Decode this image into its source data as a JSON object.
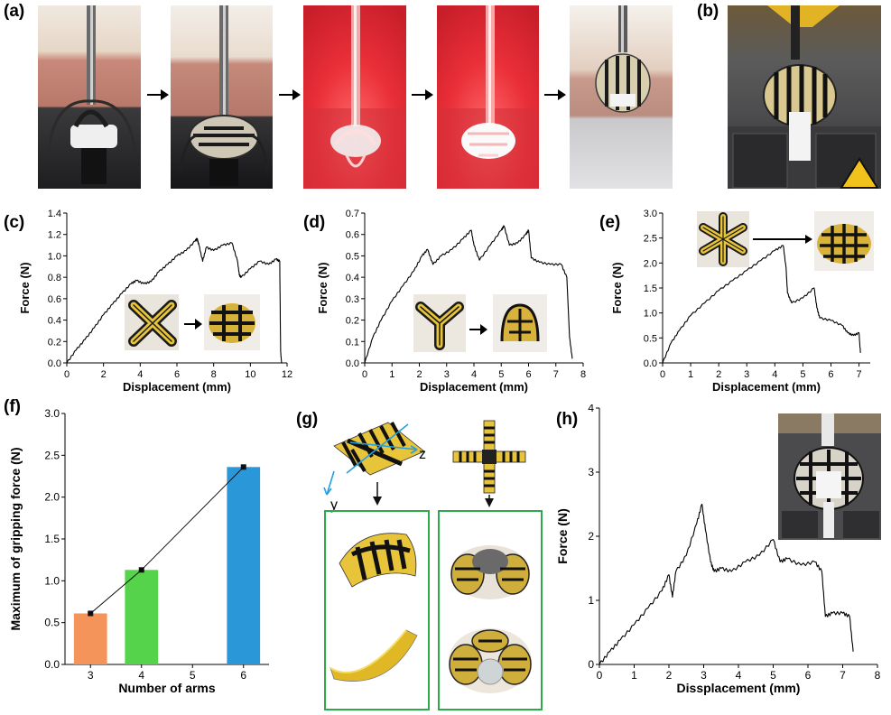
{
  "panels": {
    "a": "(a)",
    "b": "(b)",
    "c": "(c)",
    "d": "(d)",
    "e": "(e)",
    "f": "(f)",
    "g": "(g)",
    "h": "(h)"
  },
  "g_axes": {
    "z": "z",
    "y": "y"
  },
  "colors": {
    "gripper_yellow": "#e8c43a",
    "stripe_black": "#111111",
    "heat_red": "#e8343a",
    "bar_3": "#f4945a",
    "bar_4": "#55d34a",
    "bar_6": "#2a97d8",
    "frame_green": "#2eaa4a"
  },
  "chart_data": [
    {
      "id": "c",
      "type": "line",
      "xlabel": "Displacement (mm)",
      "ylabel": "Force (N)",
      "xlim": [
        0,
        12
      ],
      "ylim": [
        0,
        1.4
      ],
      "xticks": [
        "0",
        "2",
        "4",
        "6",
        "8",
        "10",
        "12"
      ],
      "yticks": [
        "0.0",
        "0.2",
        "0.4",
        "0.6",
        "0.8",
        "1.0",
        "1.2",
        "1.4"
      ],
      "x": [
        0,
        0.5,
        1,
        1.5,
        2,
        2.5,
        3,
        3.5,
        3.8,
        4.2,
        4.6,
        5.0,
        5.5,
        6.0,
        6.5,
        7.0,
        7.1,
        7.2,
        7.4,
        7.6,
        8.0,
        8.5,
        9.0,
        9.3,
        9.4,
        9.5,
        10.0,
        10.5,
        11.0,
        11.4,
        11.6,
        11.65,
        11.7
      ],
      "y": [
        0,
        0.12,
        0.22,
        0.33,
        0.45,
        0.55,
        0.65,
        0.74,
        0.77,
        0.74,
        0.76,
        0.85,
        0.92,
        1.0,
        1.05,
        1.14,
        1.16,
        1.1,
        0.95,
        1.08,
        1.05,
        1.1,
        1.12,
        0.95,
        0.82,
        0.8,
        0.88,
        0.95,
        0.92,
        0.97,
        0.95,
        0.1,
        0.0
      ]
    },
    {
      "id": "d",
      "type": "line",
      "xlabel": "Displacement (mm)",
      "ylabel": "Force (N)",
      "xlim": [
        0,
        8
      ],
      "ylim": [
        0,
        0.7
      ],
      "xticks": [
        "0",
        "1",
        "2",
        "3",
        "4",
        "5",
        "6",
        "7",
        "8"
      ],
      "yticks": [
        "0.0",
        "0.1",
        "0.2",
        "0.3",
        "0.4",
        "0.5",
        "0.6",
        "0.7"
      ],
      "x": [
        0,
        0.3,
        0.6,
        1,
        1.4,
        1.8,
        2.1,
        2.3,
        2.5,
        2.8,
        3.2,
        3.6,
        3.9,
        4.0,
        4.2,
        4.6,
        5.0,
        5.1,
        5.3,
        5.6,
        5.9,
        6.0,
        6.1,
        6.4,
        6.8,
        7.2,
        7.4,
        7.5,
        7.6
      ],
      "y": [
        0,
        0.12,
        0.2,
        0.29,
        0.36,
        0.43,
        0.5,
        0.53,
        0.46,
        0.5,
        0.53,
        0.58,
        0.62,
        0.55,
        0.48,
        0.55,
        0.62,
        0.64,
        0.55,
        0.56,
        0.6,
        0.62,
        0.49,
        0.47,
        0.46,
        0.46,
        0.4,
        0.12,
        0.02
      ]
    },
    {
      "id": "e",
      "type": "line",
      "xlabel": "Displacement (mm)",
      "ylabel": "Force (N)",
      "xlim": [
        0,
        7.4
      ],
      "ylim": [
        0,
        3.0
      ],
      "xticks": [
        "0",
        "1",
        "2",
        "3",
        "4",
        "5",
        "6",
        "7"
      ],
      "yticks": [
        "0.0",
        "0.5",
        "1.0",
        "1.5",
        "2.0",
        "2.5",
        "3.0"
      ],
      "x": [
        0,
        0.3,
        0.6,
        1,
        1.5,
        2,
        2.5,
        3,
        3.5,
        4,
        4.3,
        4.4,
        4.45,
        4.6,
        5,
        5.4,
        5.5,
        5.6,
        6,
        6.4,
        6.6,
        6.8,
        7.0,
        7.05
      ],
      "y": [
        0,
        0.4,
        0.65,
        0.95,
        1.2,
        1.45,
        1.65,
        1.85,
        2.05,
        2.25,
        2.35,
        1.9,
        1.4,
        1.2,
        1.3,
        1.5,
        1.1,
        0.9,
        0.85,
        0.75,
        0.6,
        0.55,
        0.6,
        0.2
      ]
    },
    {
      "id": "f",
      "type": "bar",
      "xlabel": "Number of arms",
      "ylabel": "Maximum of gripping force (N)",
      "xlim": [
        2.5,
        6.5
      ],
      "ylim": [
        0,
        3.0
      ],
      "xticks": [
        "3",
        "4",
        "5",
        "6"
      ],
      "yticks": [
        "0.0",
        "0.5",
        "1.0",
        "1.5",
        "2.0",
        "2.5",
        "3.0"
      ],
      "categories": [
        3,
        4,
        6
      ],
      "values": [
        0.61,
        1.13,
        2.36
      ]
    },
    {
      "id": "h",
      "type": "line",
      "xlabel": "Dissplacement (mm)",
      "ylabel": "Force (N)",
      "xlim": [
        0,
        8
      ],
      "ylim": [
        0,
        4
      ],
      "xticks": [
        "0",
        "1",
        "2",
        "3",
        "4",
        "5",
        "6",
        "7",
        "8"
      ],
      "yticks": [
        "0",
        "1",
        "2",
        "3",
        "4"
      ],
      "x": [
        0,
        0.3,
        0.6,
        1,
        1.4,
        1.8,
        2.0,
        2.1,
        2.2,
        2.5,
        2.8,
        2.95,
        3.05,
        3.2,
        3.3,
        3.5,
        3.8,
        4.2,
        4.6,
        5.0,
        5.2,
        5.4,
        5.8,
        6.2,
        6.4,
        6.5,
        6.7,
        7.0,
        7.2,
        7.3
      ],
      "y": [
        0,
        0.2,
        0.38,
        0.62,
        0.88,
        1.15,
        1.4,
        1.05,
        1.45,
        1.7,
        2.2,
        2.5,
        2.1,
        1.6,
        1.45,
        1.5,
        1.45,
        1.6,
        1.7,
        1.95,
        1.6,
        1.65,
        1.55,
        1.6,
        1.45,
        0.75,
        0.8,
        0.8,
        0.75,
        0.2
      ]
    }
  ]
}
